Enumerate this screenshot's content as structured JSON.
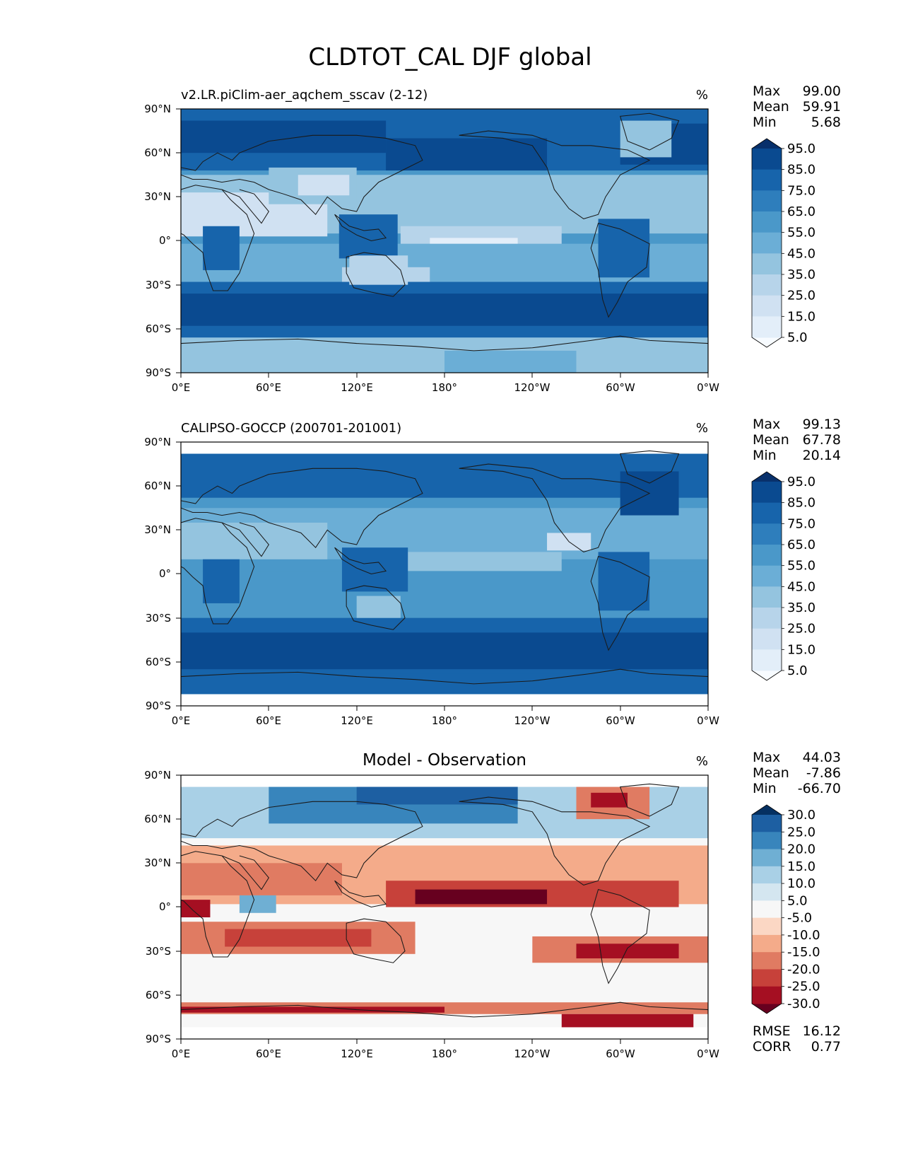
{
  "figure_title": "CLDTOT_CAL DJF global",
  "colors": {
    "seq_blues": [
      "#f7fbff",
      "#e3eef9",
      "#d0e1f2",
      "#b7d4ea",
      "#94c4df",
      "#6baed6",
      "#4a98c9",
      "#2e7ebc",
      "#1764ab",
      "#0a4a90",
      "#08306b"
    ],
    "diverging": [
      "#67001f",
      "#a50f22",
      "#c7413a",
      "#e07b62",
      "#f4ab8a",
      "#fbd7c4",
      "#f7f7f7",
      "#d4e6f0",
      "#a9d0e6",
      "#6fafd3",
      "#3885bc",
      "#1d5fa2",
      "#053061"
    ],
    "coastline": "#1a1a1a"
  },
  "chart_data": [
    {
      "type": "heatmap",
      "panel": "model",
      "title_left": "v2.LR.piClim-aer_aqchem_sscav (2-12)",
      "units": "%",
      "stats": {
        "max_label": "Max",
        "max": "99.00",
        "mean_label": "Mean",
        "mean": "59.91",
        "min_label": "Min",
        "min": "5.68"
      },
      "xticks": [
        "0°E",
        "60°E",
        "120°E",
        "180°",
        "120°W",
        "60°W",
        "0°W"
      ],
      "yticks": [
        "90°N",
        "60°N",
        "30°N",
        "0°",
        "30°S",
        "60°S",
        "90°S"
      ],
      "xlim": [
        0,
        360
      ],
      "ylim": [
        -90,
        90
      ],
      "colorbar": {
        "levels": [
          "95.0",
          "85.0",
          "75.0",
          "65.0",
          "55.0",
          "45.0",
          "35.0",
          "25.0",
          "15.0",
          "5.0"
        ],
        "extend": "both"
      },
      "map": "blues"
    },
    {
      "type": "heatmap",
      "panel": "obs",
      "title_left": "CALIPSO-GOCCP (200701-201001)",
      "units": "%",
      "stats": {
        "max_label": "Max",
        "max": "99.13",
        "mean_label": "Mean",
        "mean": "67.78",
        "min_label": "Min",
        "min": "20.14"
      },
      "xticks": [
        "0°E",
        "60°E",
        "120°E",
        "180°",
        "120°W",
        "60°W",
        "0°W"
      ],
      "yticks": [
        "90°N",
        "60°N",
        "30°N",
        "0°",
        "30°S",
        "60°S",
        "90°S"
      ],
      "xlim": [
        0,
        360
      ],
      "ylim": [
        -90,
        90
      ],
      "data_lat_range": [
        -82,
        82
      ],
      "colorbar": {
        "levels": [
          "95.0",
          "85.0",
          "75.0",
          "65.0",
          "55.0",
          "45.0",
          "35.0",
          "25.0",
          "15.0",
          "5.0"
        ],
        "extend": "both"
      },
      "map": "blues"
    },
    {
      "type": "heatmap",
      "panel": "diff",
      "title_center": "Model - Observation",
      "units": "%",
      "stats": {
        "max_label": "Max",
        "max": "44.03",
        "mean_label": "Mean",
        "mean": "-7.86",
        "min_label": "Min",
        "min": "-66.70"
      },
      "extra_stats": {
        "rmse_label": "RMSE",
        "rmse": "16.12",
        "corr_label": "CORR",
        "corr": "0.77"
      },
      "xticks": [
        "0°E",
        "60°E",
        "120°E",
        "180°",
        "120°W",
        "60°W",
        "0°W"
      ],
      "yticks": [
        "90°N",
        "60°N",
        "30°N",
        "0°",
        "30°S",
        "60°S",
        "90°S"
      ],
      "xlim": [
        0,
        360
      ],
      "ylim": [
        -90,
        90
      ],
      "data_lat_range": [
        -82,
        82
      ],
      "colorbar": {
        "levels": [
          "30.0",
          "25.0",
          "20.0",
          "15.0",
          "10.0",
          "5.0",
          "-5.0",
          "-10.0",
          "-15.0",
          "-20.0",
          "-25.0",
          "-30.0"
        ],
        "extend": "both"
      },
      "map": "diverging"
    }
  ]
}
